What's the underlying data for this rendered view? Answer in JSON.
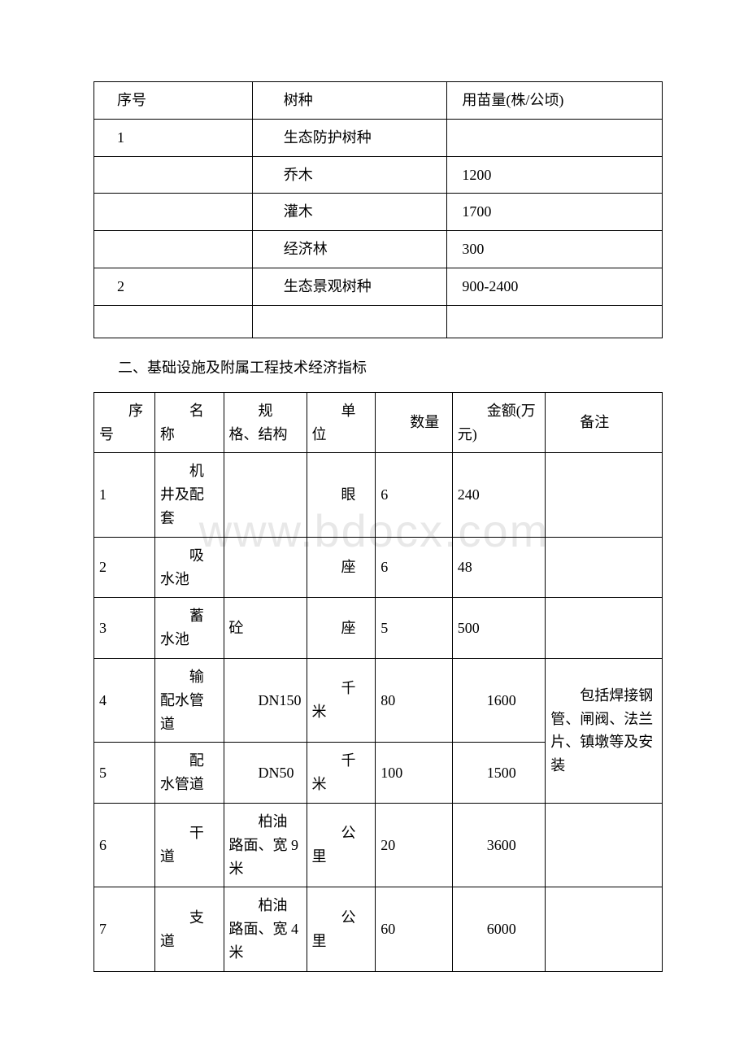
{
  "watermark": "www.bdocx.com",
  "table1": {
    "headers": [
      "序号",
      "树种",
      "用苗量(株/公顷)"
    ],
    "rows": [
      [
        "1",
        "生态防护树种",
        ""
      ],
      [
        "",
        "乔木",
        "1200"
      ],
      [
        "",
        "灌木",
        "1700"
      ],
      [
        "",
        "经济林",
        "300"
      ],
      [
        "2",
        "生态景观树种",
        "900-2400"
      ],
      [
        "",
        "",
        ""
      ]
    ]
  },
  "section_title": "二、基础设施及附属工程技术经济指标",
  "table2": {
    "headers": [
      "序号",
      "名称",
      "规格、结构",
      "单位",
      "数量",
      "金额(万元)",
      "备注"
    ],
    "rows": [
      {
        "seq": "1",
        "name": "机井及配套",
        "spec": "",
        "unit": "眼",
        "qty": "6",
        "amount": "240",
        "note": ""
      },
      {
        "seq": "2",
        "name": "吸水池",
        "spec": "",
        "unit": "座",
        "qty": "6",
        "amount": "48",
        "note": ""
      },
      {
        "seq": "3",
        "name": "蓄水池",
        "spec": "砼",
        "unit": "座",
        "qty": "5",
        "amount": "500",
        "note": ""
      },
      {
        "seq": "4",
        "name": "输配水管道",
        "spec": "DN150",
        "unit": "千米",
        "qty": "80",
        "amount": "1600",
        "note_merged": true
      },
      {
        "seq": "5",
        "name": "配水管道",
        "spec": "DN50",
        "unit": "千米",
        "qty": "100",
        "amount": "1500",
        "note_merged": true
      },
      {
        "seq": "6",
        "name": "干道",
        "spec": "柏油路面、宽 9 米",
        "unit": "公里",
        "qty": "20",
        "amount": "3600",
        "note": ""
      },
      {
        "seq": "7",
        "name": "支道",
        "spec": "柏油路面、宽 4 米",
        "unit": "公里",
        "qty": "60",
        "amount": "6000",
        "note": ""
      }
    ],
    "merged_note": "包括焊接钢管、闸阀、法兰片、镇墩等及安装"
  }
}
